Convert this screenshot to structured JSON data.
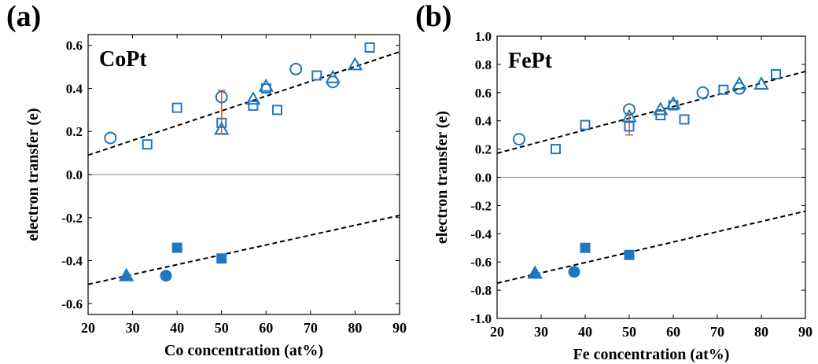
{
  "panel_letters": [
    "(a)",
    "(b)"
  ],
  "colors": {
    "data": "#1f77c0",
    "error": "#e0602a",
    "fit": "#000000",
    "axis": "#000000",
    "zero_line": "#999999"
  },
  "chart_data": [
    {
      "type": "scatter",
      "label": "CoPt",
      "xlabel": "Co concentration (at%)",
      "ylabel": "electron transfer (e)",
      "xlim": [
        20,
        90
      ],
      "ylim": [
        -0.65,
        0.65
      ],
      "xticks": [
        20,
        30,
        40,
        50,
        60,
        70,
        80,
        90
      ],
      "yticks": [
        -0.6,
        -0.4,
        -0.2,
        0.0,
        0.2,
        0.4,
        0.6
      ],
      "ytick_labels": [
        "-0.6",
        "-0.4",
        "-0.2",
        "0.0",
        "0.2",
        "0.4",
        "0.6"
      ],
      "zero_line": 0,
      "series": [
        {
          "marker": "open-circle",
          "points": [
            [
              25,
              0.17
            ],
            [
              50,
              0.36
            ],
            [
              66.7,
              0.49
            ],
            [
              75,
              0.43
            ]
          ]
        },
        {
          "marker": "open-square",
          "points": [
            [
              33.3,
              0.14
            ],
            [
              40,
              0.31
            ],
            [
              50,
              0.24
            ],
            [
              57.1,
              0.32
            ],
            [
              60,
              0.4
            ],
            [
              62.5,
              0.3
            ],
            [
              71.4,
              0.46
            ],
            [
              83.3,
              0.59
            ]
          ]
        },
        {
          "marker": "open-triangle",
          "points": [
            [
              50,
              0.21
            ],
            [
              57.1,
              0.35
            ],
            [
              60,
              0.41
            ],
            [
              75,
              0.45
            ],
            [
              80,
              0.51
            ]
          ]
        },
        {
          "marker": "filled-circle",
          "points": [
            [
              37.5,
              -0.47
            ]
          ]
        },
        {
          "marker": "filled-square",
          "points": [
            [
              40,
              -0.34
            ],
            [
              50,
              -0.39
            ]
          ]
        },
        {
          "marker": "filled-triangle",
          "points": [
            [
              28.6,
              -0.47
            ]
          ]
        }
      ],
      "error_bars": [
        {
          "x": 50,
          "low": 0.19,
          "high": 0.39
        }
      ],
      "fit_lines": [
        {
          "x": [
            20,
            90
          ],
          "y": [
            0.09,
            0.57
          ]
        },
        {
          "x": [
            20,
            90
          ],
          "y": [
            -0.51,
            -0.19
          ]
        }
      ]
    },
    {
      "type": "scatter",
      "label": "FePt",
      "xlabel": "Fe concentration (at%)",
      "ylabel": "electron transfer (e)",
      "xlim": [
        20,
        90
      ],
      "ylim": [
        -1.0,
        1.0
      ],
      "xticks": [
        20,
        30,
        40,
        50,
        60,
        70,
        80,
        90
      ],
      "yticks": [
        -1.0,
        -0.8,
        -0.6,
        -0.4,
        -0.2,
        0.0,
        0.2,
        0.4,
        0.6,
        0.8,
        1.0
      ],
      "ytick_labels": [
        "-1.0",
        "-0.8",
        "-0.6",
        "-0.4",
        "-0.2",
        "0.0",
        "0.2",
        "0.4",
        "0.6",
        "0.8",
        "1.0"
      ],
      "zero_line": 0,
      "series": [
        {
          "marker": "open-circle",
          "points": [
            [
              25,
              0.27
            ],
            [
              50,
              0.48
            ],
            [
              66.7,
              0.6
            ],
            [
              75,
              0.63
            ]
          ]
        },
        {
          "marker": "open-square",
          "points": [
            [
              33.3,
              0.2
            ],
            [
              40,
              0.37
            ],
            [
              50,
              0.36
            ],
            [
              57.1,
              0.44
            ],
            [
              60,
              0.51
            ],
            [
              62.5,
              0.41
            ],
            [
              71.4,
              0.62
            ],
            [
              83.3,
              0.73
            ]
          ]
        },
        {
          "marker": "open-triangle",
          "points": [
            [
              50,
              0.43
            ],
            [
              57.1,
              0.48
            ],
            [
              60,
              0.52
            ],
            [
              75,
              0.66
            ],
            [
              80,
              0.66
            ]
          ]
        },
        {
          "marker": "filled-circle",
          "points": [
            [
              37.5,
              -0.67
            ]
          ]
        },
        {
          "marker": "filled-square",
          "points": [
            [
              40,
              -0.5
            ],
            [
              50,
              -0.55
            ]
          ]
        },
        {
          "marker": "filled-triangle",
          "points": [
            [
              28.6,
              -0.68
            ]
          ]
        }
      ],
      "error_bars": [
        {
          "x": 50,
          "low": 0.3,
          "high": 0.45
        },
        {
          "x": 50,
          "low": -0.57,
          "high": -0.53
        }
      ],
      "fit_lines": [
        {
          "x": [
            20,
            90
          ],
          "y": [
            0.17,
            0.75
          ]
        },
        {
          "x": [
            20,
            90
          ],
          "y": [
            -0.75,
            -0.24
          ]
        }
      ]
    }
  ]
}
